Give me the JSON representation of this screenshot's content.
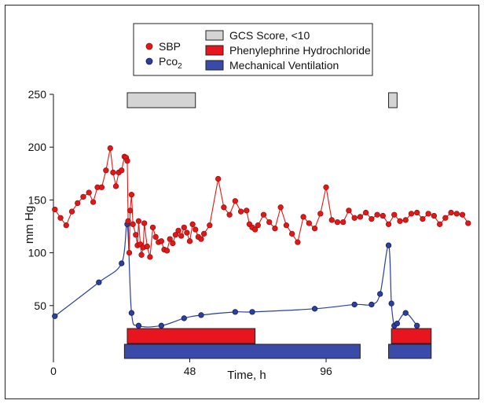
{
  "chart_data": {
    "type": "line",
    "xlabel": "Time, h",
    "ylabel": "mm Hg",
    "xlim": [
      0,
      148
    ],
    "ylim": [
      0,
      250
    ],
    "x_ticks": [
      0,
      48,
      96
    ],
    "y_ticks": [
      50,
      100,
      150,
      200,
      250
    ],
    "legend": {
      "position": "top-center",
      "series_labels": [
        "SBP",
        "Pco"
      ],
      "series_label_subscript": [
        "",
        "2"
      ],
      "bar_labels": [
        "GCS Score, <10",
        "Phenylephrine Hydrochloride",
        "Mechanical Ventilation"
      ]
    },
    "colors": {
      "sbp": "#e01818",
      "sbp_marker_edge": "#9a0d0d",
      "pco2": "#2b3f9e",
      "pco2_marker_edge": "#101b52",
      "gcs": "#d4d4d4",
      "phenylephrine": "#e8141e",
      "ventilation": "#3a4aa8"
    },
    "series": [
      {
        "name": "SBP",
        "points": [
          [
            0.5,
            141
          ],
          [
            2.5,
            133
          ],
          [
            4.5,
            126
          ],
          [
            6.5,
            139
          ],
          [
            8.5,
            147
          ],
          [
            10.5,
            153
          ],
          [
            12.5,
            157
          ],
          [
            14,
            148
          ],
          [
            15.5,
            162
          ],
          [
            17,
            162
          ],
          [
            18.5,
            178
          ],
          [
            20,
            199
          ],
          [
            21,
            176
          ],
          [
            22,
            163
          ],
          [
            23,
            176
          ],
          [
            24,
            178
          ],
          [
            25,
            191
          ],
          [
            25.6,
            190
          ],
          [
            26,
            187
          ],
          [
            26.3,
            130
          ],
          [
            26.7,
            100
          ],
          [
            27,
            140
          ],
          [
            27.5,
            155
          ],
          [
            28,
            127
          ],
          [
            29,
            117
          ],
          [
            29.6,
            107
          ],
          [
            30,
            130
          ],
          [
            30.6,
            108
          ],
          [
            31,
            98
          ],
          [
            31.6,
            105
          ],
          [
            32,
            128
          ],
          [
            33,
            106
          ],
          [
            34,
            96
          ],
          [
            35,
            124
          ],
          [
            36,
            115
          ],
          [
            37,
            110
          ],
          [
            38,
            111
          ],
          [
            39,
            103
          ],
          [
            40,
            102
          ],
          [
            41,
            113
          ],
          [
            42,
            109
          ],
          [
            43,
            117
          ],
          [
            44,
            121
          ],
          [
            45,
            116
          ],
          [
            46,
            124
          ],
          [
            47,
            119
          ],
          [
            48,
            111
          ],
          [
            49,
            127
          ],
          [
            50,
            122
          ],
          [
            51,
            115
          ],
          [
            52,
            113
          ],
          [
            53,
            118
          ],
          [
            55,
            126
          ],
          [
            58,
            170
          ],
          [
            60,
            143
          ],
          [
            62,
            136
          ],
          [
            64,
            149
          ],
          [
            66,
            139
          ],
          [
            68,
            140
          ],
          [
            69,
            127
          ],
          [
            70,
            124
          ],
          [
            71,
            122
          ],
          [
            72,
            126
          ],
          [
            74,
            136
          ],
          [
            76,
            129
          ],
          [
            78,
            123
          ],
          [
            80,
            143
          ],
          [
            82,
            126
          ],
          [
            84,
            118
          ],
          [
            86,
            110
          ],
          [
            88,
            134
          ],
          [
            90,
            128
          ],
          [
            92,
            123
          ],
          [
            94,
            137
          ],
          [
            96,
            162
          ],
          [
            98,
            131
          ],
          [
            100,
            129
          ],
          [
            102,
            129
          ],
          [
            104,
            140
          ],
          [
            106,
            133
          ],
          [
            108,
            134
          ],
          [
            110,
            138
          ],
          [
            112,
            132
          ],
          [
            114,
            136
          ],
          [
            116,
            135
          ],
          [
            118,
            127
          ],
          [
            120,
            136
          ],
          [
            122,
            130
          ],
          [
            124,
            131
          ],
          [
            126,
            137
          ],
          [
            128,
            138
          ],
          [
            130,
            132
          ],
          [
            132,
            137
          ],
          [
            134,
            135
          ],
          [
            136,
            127
          ],
          [
            138,
            133
          ],
          [
            140,
            138
          ],
          [
            142,
            137
          ],
          [
            144,
            136
          ],
          [
            146,
            128
          ]
        ]
      },
      {
        "name": "Pco2",
        "points": [
          [
            0.5,
            40
          ],
          [
            16,
            72
          ],
          [
            24,
            90
          ],
          [
            26,
            127
          ],
          [
            27.5,
            43
          ],
          [
            30,
            31
          ],
          [
            38,
            31
          ],
          [
            46,
            38
          ],
          [
            52,
            41
          ],
          [
            64,
            44
          ],
          [
            70,
            44
          ],
          [
            92,
            47
          ],
          [
            106,
            51
          ],
          [
            112,
            51
          ],
          [
            115,
            61
          ],
          [
            118,
            107
          ],
          [
            119,
            52
          ],
          [
            120,
            31
          ],
          [
            121,
            33
          ],
          [
            124,
            43
          ],
          [
            128,
            31
          ]
        ]
      }
    ],
    "bars": [
      {
        "name": "GCS Score, <10",
        "segments": [
          [
            26,
            50
          ],
          [
            118,
            121
          ]
        ]
      },
      {
        "name": "Phenylephrine Hydrochloride",
        "segments": [
          [
            26,
            71
          ],
          [
            119,
            133
          ]
        ]
      },
      {
        "name": "Mechanical Ventilation",
        "segments": [
          [
            25,
            108
          ],
          [
            118,
            133
          ]
        ]
      }
    ]
  }
}
